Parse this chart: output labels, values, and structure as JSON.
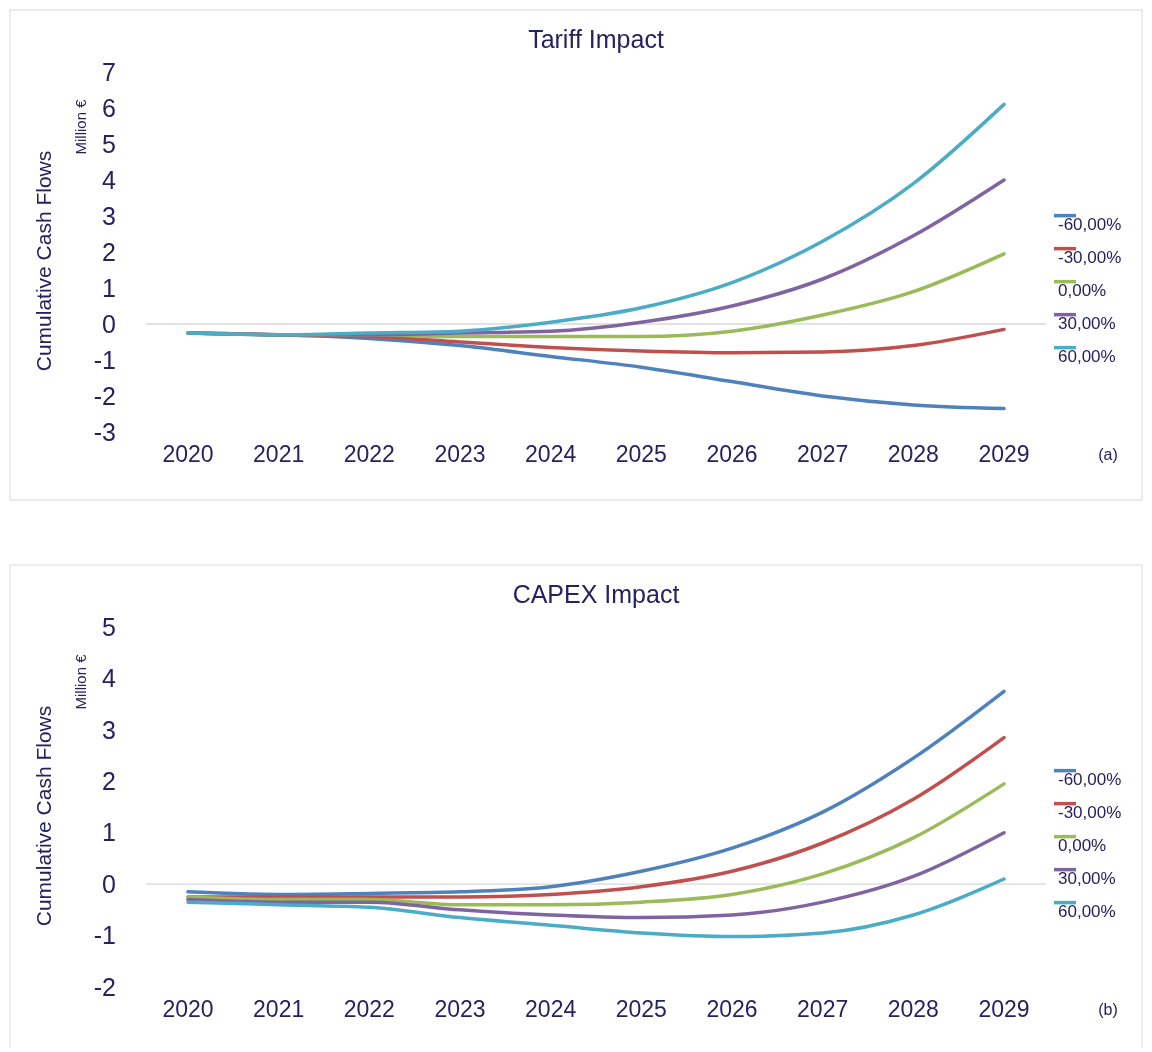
{
  "chart_data": [
    {
      "type": "line",
      "title": "Tariff Impact",
      "ylabel": "Cumulative Cash Flows",
      "annotations": [
        "Million €",
        "(a)"
      ],
      "categories": [
        "2020",
        "2021",
        "2022",
        "2023",
        "2024",
        "2025",
        "2026",
        "2027",
        "2028",
        "2029"
      ],
      "ylim": [
        -3,
        7
      ],
      "yticks": [
        -3,
        -2,
        -1,
        0,
        1,
        2,
        3,
        4,
        5,
        6,
        7
      ],
      "grid": false,
      "ref_lines": [
        {
          "axis": "y",
          "value": 0,
          "color": "#d9d9d9"
        }
      ],
      "legend": "right",
      "marker": "none",
      "series": [
        {
          "name": "-60,00%",
          "color": "#4f81bd",
          "values": [
            -0.25,
            -0.3,
            -0.4,
            -0.6,
            -0.9,
            -1.2,
            -1.6,
            -2.0,
            -2.25,
            -2.35
          ]
        },
        {
          "name": "-30,00%",
          "color": "#c0504d",
          "values": [
            -0.25,
            -0.3,
            -0.35,
            -0.5,
            -0.65,
            -0.75,
            -0.8,
            -0.78,
            -0.6,
            -0.15
          ]
        },
        {
          "name": "0,00%",
          "color": "#9bbb59",
          "values": [
            -0.25,
            -0.3,
            -0.3,
            -0.35,
            -0.35,
            -0.35,
            -0.2,
            0.25,
            0.9,
            1.95
          ]
        },
        {
          "name": "30,00%",
          "color": "#8064a2",
          "values": [
            -0.25,
            -0.3,
            -0.3,
            -0.25,
            -0.2,
            0.05,
            0.5,
            1.25,
            2.45,
            4.0
          ]
        },
        {
          "name": "60,00%",
          "color": "#4bacc6",
          "values": [
            -0.25,
            -0.3,
            -0.25,
            -0.2,
            0.05,
            0.45,
            1.15,
            2.3,
            3.9,
            6.1
          ]
        }
      ]
    },
    {
      "type": "line",
      "title": "CAPEX Impact",
      "ylabel": "Cumulative Cash Flows",
      "annotations": [
        "Million €",
        "(b)"
      ],
      "categories": [
        "2020",
        "2021",
        "2022",
        "2023",
        "2024",
        "2025",
        "2026",
        "2027",
        "2028",
        "2029"
      ],
      "ylim": [
        -2,
        5
      ],
      "yticks": [
        -2,
        -1,
        0,
        1,
        2,
        3,
        4,
        5
      ],
      "grid": false,
      "ref_lines": [
        {
          "axis": "y",
          "value": 0,
          "color": "#d9d9d9"
        }
      ],
      "legend": "right",
      "marker": "none",
      "series": [
        {
          "name": "-60,00%",
          "color": "#4f81bd",
          "values": [
            -0.15,
            -0.2,
            -0.18,
            -0.15,
            -0.05,
            0.25,
            0.7,
            1.4,
            2.45,
            3.75
          ]
        },
        {
          "name": "-30,00%",
          "color": "#c0504d",
          "values": [
            -0.25,
            -0.25,
            -0.25,
            -0.25,
            -0.2,
            -0.05,
            0.25,
            0.8,
            1.65,
            2.85
          ]
        },
        {
          "name": "0,00%",
          "color": "#9bbb59",
          "values": [
            -0.25,
            -0.3,
            -0.3,
            -0.4,
            -0.4,
            -0.35,
            -0.2,
            0.2,
            0.9,
            1.95
          ]
        },
        {
          "name": "30,00%",
          "color": "#8064a2",
          "values": [
            -0.3,
            -0.35,
            -0.35,
            -0.5,
            -0.6,
            -0.65,
            -0.6,
            -0.35,
            0.15,
            1.0
          ]
        },
        {
          "name": "60,00%",
          "color": "#4bacc6",
          "values": [
            -0.35,
            -0.4,
            -0.45,
            -0.65,
            -0.8,
            -0.95,
            -1.02,
            -0.95,
            -0.6,
            0.1
          ]
        }
      ]
    }
  ]
}
